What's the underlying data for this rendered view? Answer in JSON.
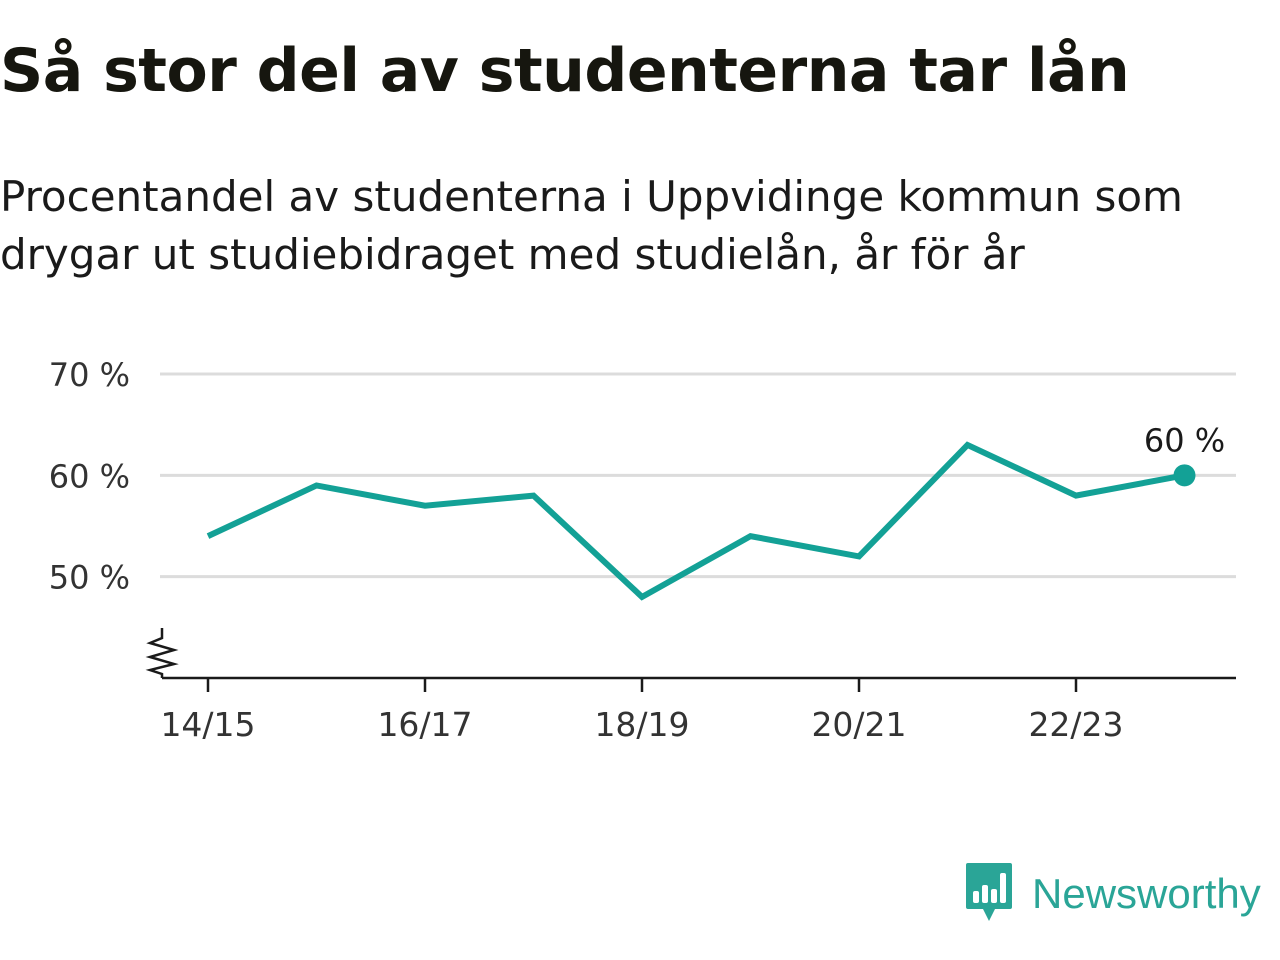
{
  "title": "Så stor del av studenterna tar lån",
  "subtitle": "Procentandel av studenterna i Uppvidinge kommun som drygar ut studiebidraget med studielån, år för år",
  "brand": {
    "name": "Newsworthy",
    "icon": "newsworthy-chart-icon",
    "color": "#2aa597"
  },
  "chart_data": {
    "type": "line",
    "x": [
      "14/15",
      "15/16",
      "16/17",
      "17/18",
      "18/19",
      "19/20",
      "20/21",
      "21/22",
      "22/23",
      "23/24"
    ],
    "series": [
      {
        "values": [
          54,
          59,
          57,
          58,
          48,
          54,
          52,
          63,
          58,
          60
        ],
        "color": "#13a196"
      }
    ],
    "ylim": [
      40,
      70
    ],
    "y_ticks": [
      {
        "value": 50,
        "label": "50 %"
      },
      {
        "value": 60,
        "label": "60 %"
      },
      {
        "value": 70,
        "label": "70 %"
      }
    ],
    "x_tick_labels": [
      "14/15",
      "16/17",
      "18/19",
      "20/21",
      "22/23"
    ],
    "end_label": "60 %",
    "axis_break": true,
    "grid": true,
    "xlabel": "",
    "ylabel": ""
  }
}
